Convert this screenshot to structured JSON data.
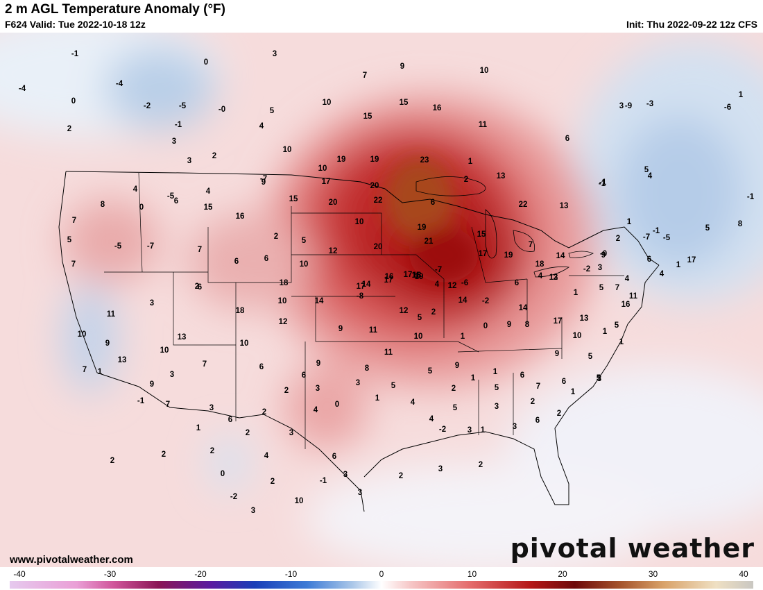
{
  "header": {
    "title": "2 m AGL Temperature Anomaly (°F)",
    "valid": "F624 Valid: Tue 2022-10-18 12z",
    "init": "Init: Thu 2022-09-22 12z CFS"
  },
  "footer": {
    "website": "www.pivotalweather.com",
    "brand": "pivotal weather"
  },
  "colorbar": {
    "ticks": [
      "-40",
      "-30",
      "-20",
      "-10",
      "0",
      "10",
      "20",
      "30",
      "40"
    ],
    "range": [
      -40,
      40
    ]
  },
  "map_labels": [
    "-1",
    "0",
    "3",
    "9",
    "7",
    "10",
    "-4",
    "-4",
    "0",
    "-2",
    "-5",
    "-0",
    "5",
    "10",
    "15",
    "16",
    "2",
    "-1",
    "4",
    "10",
    "15",
    "11",
    "3",
    "3",
    "2",
    "10",
    "19",
    "19",
    "23",
    "1",
    "-1",
    "3",
    "-3",
    "-6",
    "6",
    "-9",
    "1",
    "5",
    "4",
    "9",
    "17",
    "20",
    "15",
    "13",
    "-1",
    "4",
    "-5",
    "4",
    "-7",
    "2",
    "-1",
    "8",
    "0",
    "6",
    "15",
    "16",
    "20",
    "22",
    "6",
    "13",
    "1",
    "-1",
    "7",
    "5",
    "-5",
    "-7",
    "7",
    "2",
    "5",
    "10",
    "19",
    "22",
    "7",
    "6",
    "6",
    "10",
    "12",
    "20",
    "21",
    "15",
    "7",
    "14",
    "9",
    "2",
    "5",
    "8",
    "18",
    "19",
    "-7",
    "6",
    "17",
    "17",
    "19",
    "18",
    "13",
    "-0",
    "-7",
    "4",
    "-2",
    "3",
    "4",
    "-5",
    "1",
    "14",
    "17",
    "17",
    "18",
    "12",
    "2",
    "7",
    "2",
    "6",
    "3",
    "10",
    "14",
    "17",
    "16",
    "15",
    "4",
    "-6",
    "6",
    "4",
    "1",
    "5",
    "11",
    "16",
    "18",
    "12",
    "-8",
    "14",
    "-2",
    "14",
    "17",
    "13",
    "5",
    "1",
    "11",
    "10",
    "9",
    "13",
    "10",
    "9",
    "11",
    "12",
    "5",
    "2",
    "1",
    "0",
    "9",
    "8",
    "9",
    "10",
    "1",
    "7",
    "13",
    "9",
    "10",
    "3",
    "7",
    "6",
    "9",
    "6",
    "8",
    "11",
    "10",
    "5",
    "9",
    "1",
    "1",
    "5",
    "6",
    "7",
    "6",
    "5",
    "5",
    "1",
    "-1",
    "7",
    "3",
    "6",
    "2",
    "2",
    "3",
    "4",
    "2",
    "3",
    "0",
    "3",
    "1",
    "5",
    "4",
    "4",
    "-2",
    "2",
    "5",
    "3",
    "1",
    "3",
    "3",
    "2",
    "6",
    "2",
    "1",
    "3",
    "2",
    "2",
    "1",
    "2",
    "0",
    "-2",
    "3",
    "4",
    "2",
    "10",
    "-1",
    "6",
    "3",
    "3",
    "2",
    "3",
    "2"
  ]
}
